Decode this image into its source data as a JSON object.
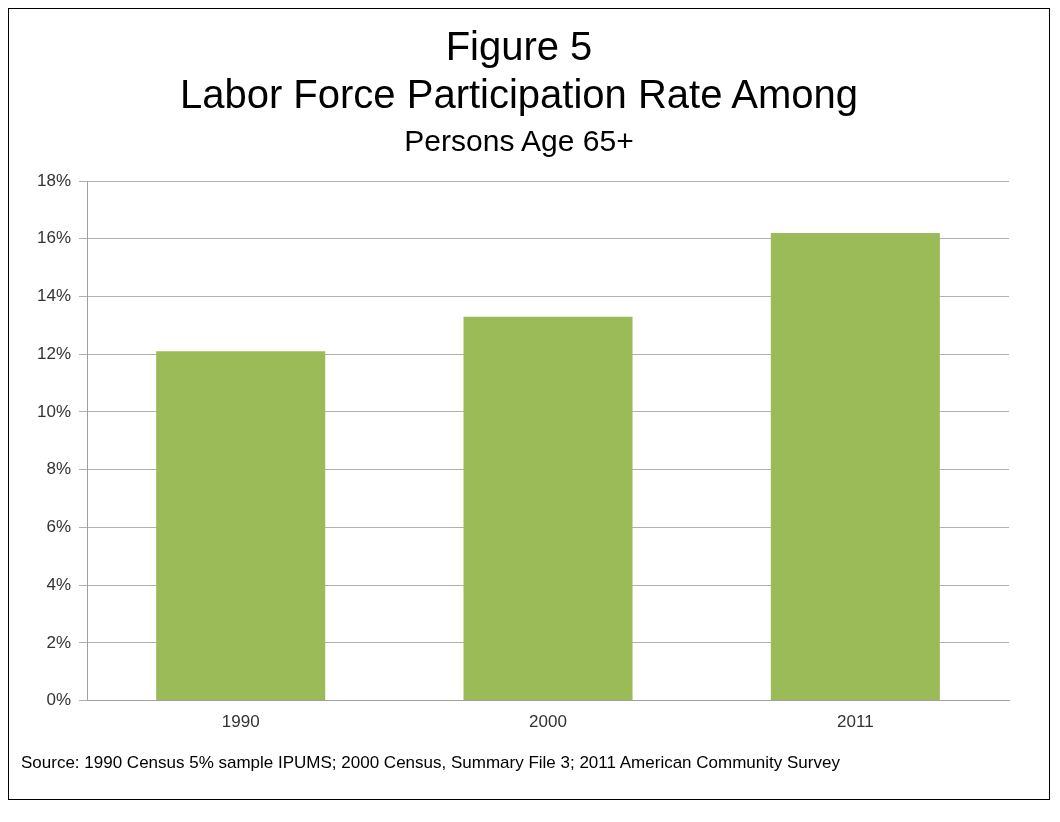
{
  "chart_data": {
    "type": "bar",
    "title": "Figure 5\nLabor Force Participation Rate Among",
    "subtitle": "Persons Age 65+",
    "categories": [
      "1990",
      "2000",
      "2011"
    ],
    "values": [
      12.1,
      13.3,
      16.2
    ],
    "color": "#9bbb59",
    "ylim": [
      0,
      18
    ],
    "yticks": [
      {
        "value": 0,
        "label": "0%"
      },
      {
        "value": 2,
        "label": "2%"
      },
      {
        "value": 4,
        "label": "4%"
      },
      {
        "value": 6,
        "label": "6%"
      },
      {
        "value": 8,
        "label": "8%"
      },
      {
        "value": 10,
        "label": "10%"
      },
      {
        "value": 12,
        "label": "12%"
      },
      {
        "value": 14,
        "label": "14%"
      },
      {
        "value": 16,
        "label": "16%"
      },
      {
        "value": 18,
        "label": "18%"
      }
    ],
    "grid": "y",
    "legend": false,
    "annotations": [
      "Source: 1990 Census 5% sample IPUMS; 2000 Census, Summary File 3; 2011 American Community Survey"
    ]
  }
}
